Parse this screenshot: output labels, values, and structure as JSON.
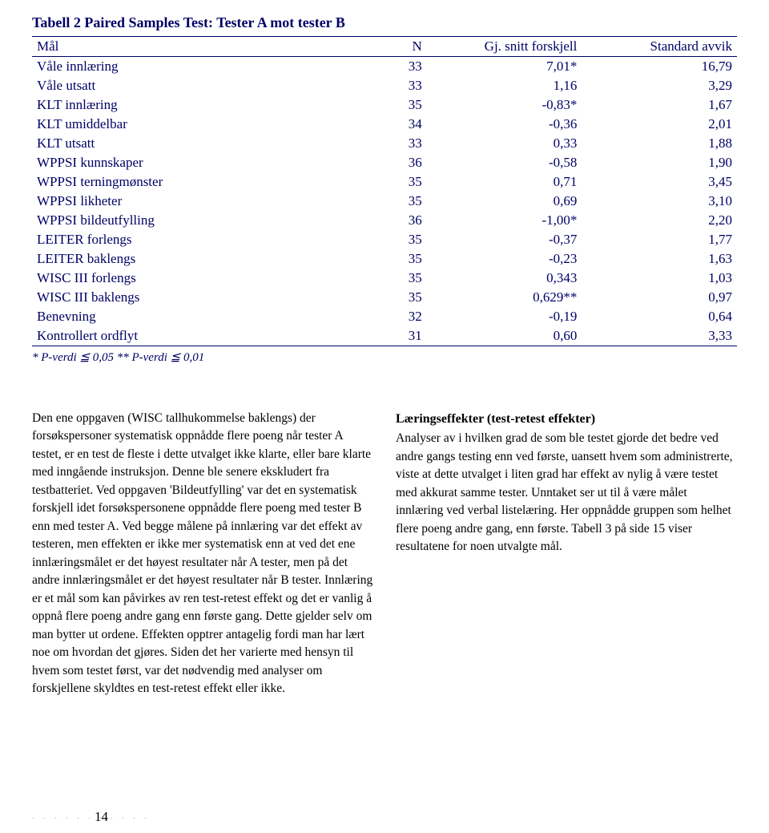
{
  "table": {
    "title": "Tabell 2 Paired Samples Test: Tester A mot tester B",
    "columns": [
      "Mål",
      "N",
      "Gj. snitt forskjell",
      "Standard avvik"
    ],
    "rows": [
      [
        "Våle innlæring",
        "33",
        "7,01*",
        "16,79"
      ],
      [
        "Våle utsatt",
        "33",
        "1,16",
        "3,29"
      ],
      [
        "KLT innlæring",
        "35",
        "-0,83*",
        "1,67"
      ],
      [
        "KLT umiddelbar",
        "34",
        "-0,36",
        "2,01"
      ],
      [
        "KLT utsatt",
        "33",
        "0,33",
        "1,88"
      ],
      [
        "WPPSI kunnskaper",
        "36",
        "-0,58",
        "1,90"
      ],
      [
        "WPPSI terningmønster",
        "35",
        "0,71",
        "3,45"
      ],
      [
        "WPPSI likheter",
        "35",
        "0,69",
        "3,10"
      ],
      [
        "WPPSI bildeutfylling",
        "36",
        "-1,00*",
        "2,20"
      ],
      [
        "LEITER forlengs",
        "35",
        "-0,37",
        "1,77"
      ],
      [
        "LEITER baklengs",
        "35",
        "-0,23",
        "1,63"
      ],
      [
        "WISC III forlengs",
        "35",
        "0,343",
        "1,03"
      ],
      [
        "WISC III baklengs",
        "35",
        "0,629**",
        "0,97"
      ],
      [
        "Benevning",
        "32",
        "-0,19",
        "0,64"
      ],
      [
        "Kontrollert ordflyt",
        "31",
        "0,60",
        "3,33"
      ]
    ],
    "footnote": "* P-verdi ≦ 0,05  ** P-verdi ≦ 0,01",
    "header_color": "#000066",
    "border_color": "#000066"
  },
  "left_para": "Den ene oppgaven (WISC tallhukommelse baklengs) der forsøkspersoner systematisk oppnådde flere poeng når tester A testet, er en test de fleste i dette utvalget ikke klarte, eller bare klarte med inngående instruksjon. Denne ble senere ekskludert fra testbatteriet. Ved oppgaven 'Bildeutfylling' var det en systematisk forskjell idet forsøkspersonene oppnådde flere poeng med tester B enn med tester A. Ved begge målene på innlæring var det effekt av testeren, men effekten er ikke mer systematisk enn at ved det ene innlæringsmålet er det høyest resultater når A tester, men på det andre innlæringsmålet er det høyest resultater når B tester. Innlæring er et mål som kan påvirkes av ren test-retest effekt og det er vanlig å oppnå flere poeng andre gang enn første gang. Dette gjelder selv om man bytter ut ordene. Effekten opptrer antagelig fordi man har lært noe om hvordan det gjøres. Siden det her varierte med hensyn til hvem som testet først, var det nødvendig med analyser om forskjellene skyldtes en test-retest effekt eller ikke.",
  "right_heading": "Læringseffekter (test-retest effekter)",
  "right_para": "Analyser av i hvilken grad de som ble testet gjorde det bedre ved andre gangs testing enn ved første, uansett hvem som administrerte, viste at dette utvalget i liten grad har effekt av nylig å være testet med akkurat samme tester. Unntaket ser ut til å være målet innlæring ved verbal listelæring. Her oppnådde gruppen som helhet flere poeng andre gang, enn første. Tabell 3 på side 15 viser resultatene for noen utvalgte mål.",
  "page_number": "14"
}
